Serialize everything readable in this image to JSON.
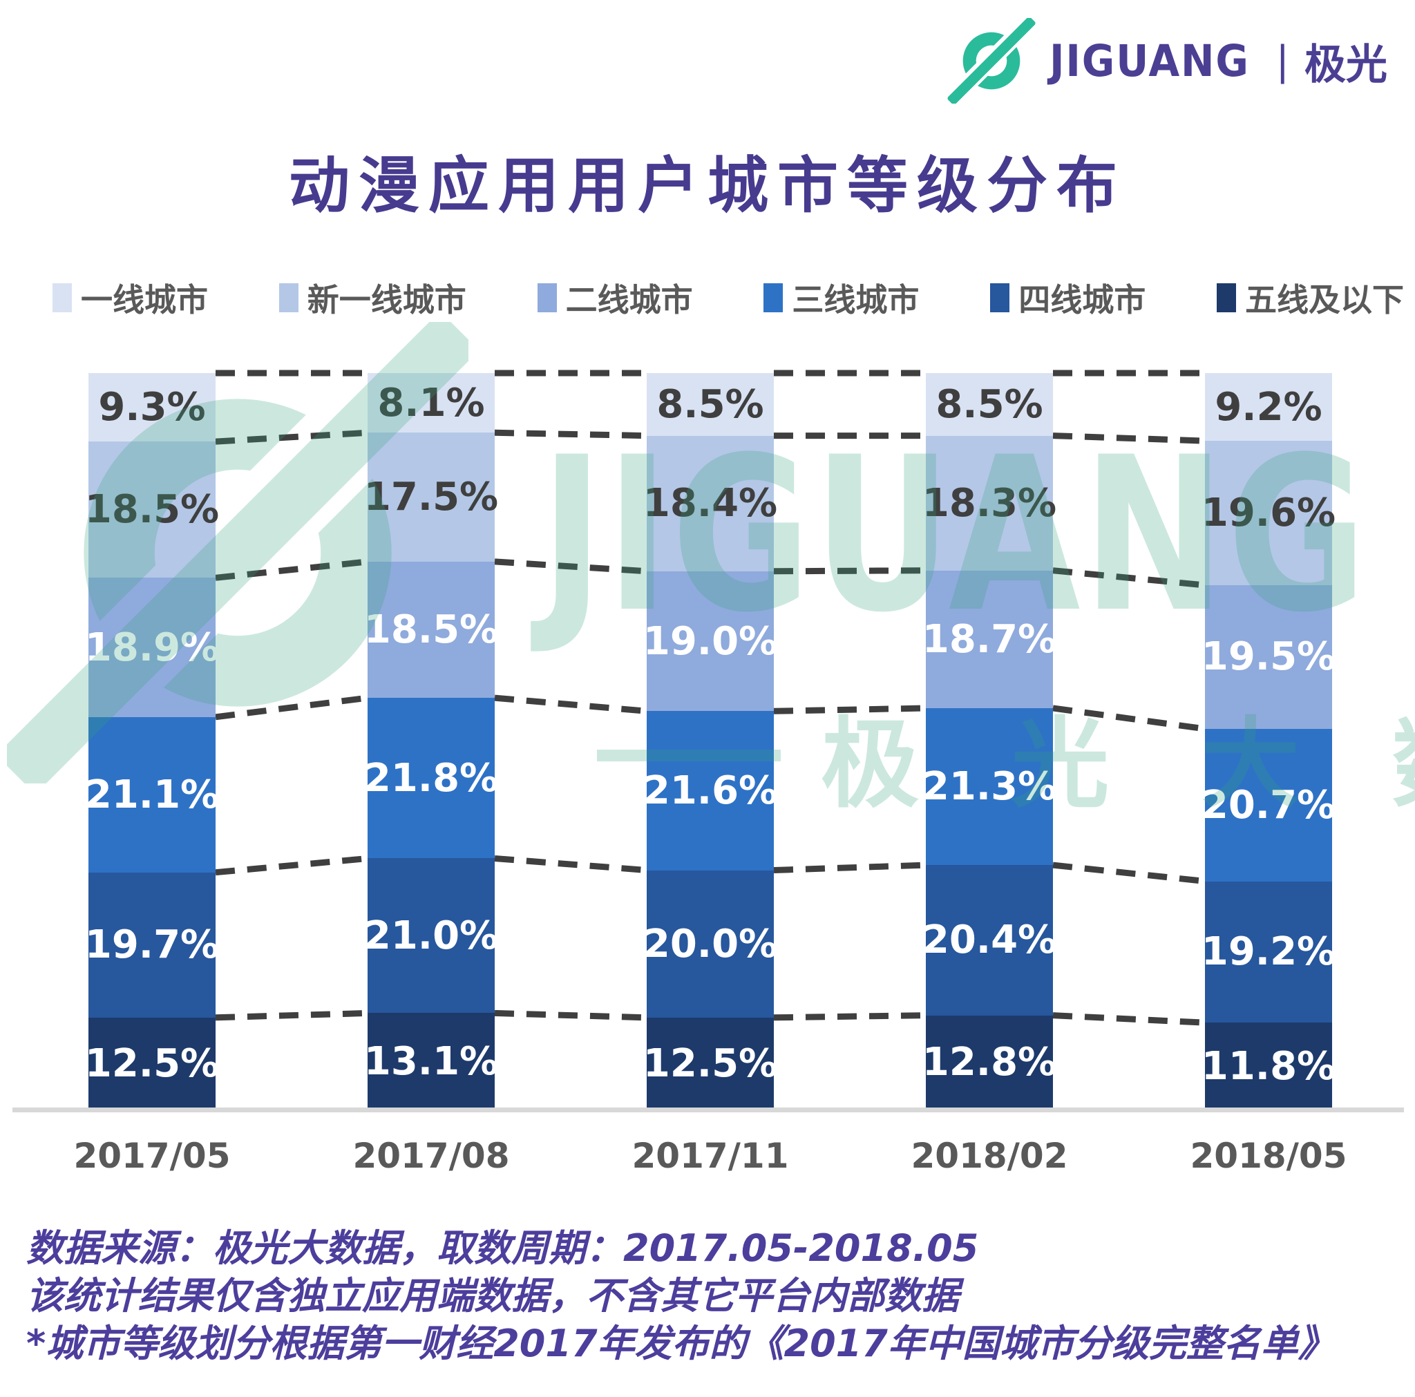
{
  "brand": {
    "name_en": "JIGUANG",
    "divider": "|",
    "name_cn": "极光"
  },
  "title": "动漫应用用户城市等级分布",
  "watermark": {
    "text_en": "JIGUANG",
    "text_cn": "极 光 大 数 据"
  },
  "chart_data": {
    "type": "bar",
    "subtype": "stacked-100-percent",
    "title": "动漫应用用户城市等级分布",
    "unit": "%",
    "legend_position": "top",
    "grid": "dashed-connectors-between-bars",
    "categories": [
      "2017/05",
      "2017/08",
      "2017/11",
      "2018/02",
      "2018/05"
    ],
    "series": [
      {
        "name": "一线城市",
        "color": "#D9E2F3",
        "label_color": "#3F3F3F",
        "values": [
          9.3,
          8.1,
          8.5,
          8.5,
          9.2
        ]
      },
      {
        "name": "新一线城市",
        "color": "#B4C7E7",
        "label_color": "#3F3F3F",
        "values": [
          18.5,
          17.5,
          18.4,
          18.3,
          19.6
        ]
      },
      {
        "name": "二线城市",
        "color": "#8FAADC",
        "label_color": "#FFFFFF",
        "values": [
          18.9,
          18.5,
          19.0,
          18.7,
          19.5
        ]
      },
      {
        "name": "三线城市",
        "color": "#2E72C6",
        "label_color": "#FFFFFF",
        "values": [
          21.1,
          21.8,
          21.6,
          21.3,
          20.7
        ]
      },
      {
        "name": "四线城市",
        "color": "#27579D",
        "label_color": "#FFFFFF",
        "values": [
          19.7,
          21.0,
          20.0,
          20.4,
          19.2
        ]
      },
      {
        "name": "五线及以下",
        "color": "#1D3A6B",
        "label_color": "#FFFFFF",
        "values": [
          12.5,
          13.1,
          12.5,
          12.8,
          11.8
        ]
      }
    ]
  },
  "footer": {
    "line1": "数据来源：极光大数据，取数周期：2017.05-2018.05",
    "line2": "该统计结果仅含独立应用端数据，不含其它平台内部数据",
    "line3": "*城市等级划分根据第一财经2017年发布的《2017年中国城市分级完整名单》"
  },
  "colors": {
    "brand_purple": "#4B3F93",
    "brand_teal": "#2ABB9B",
    "title_purple": "#463B8E",
    "footer_purple": "#4C3E9C",
    "legend_text": "#595959",
    "axis_text": "#595959",
    "dashed_line": "#3F3F3F",
    "baseline": "#D8D8D8",
    "watermark_green": "rgba(51,165,125,0.25)"
  }
}
